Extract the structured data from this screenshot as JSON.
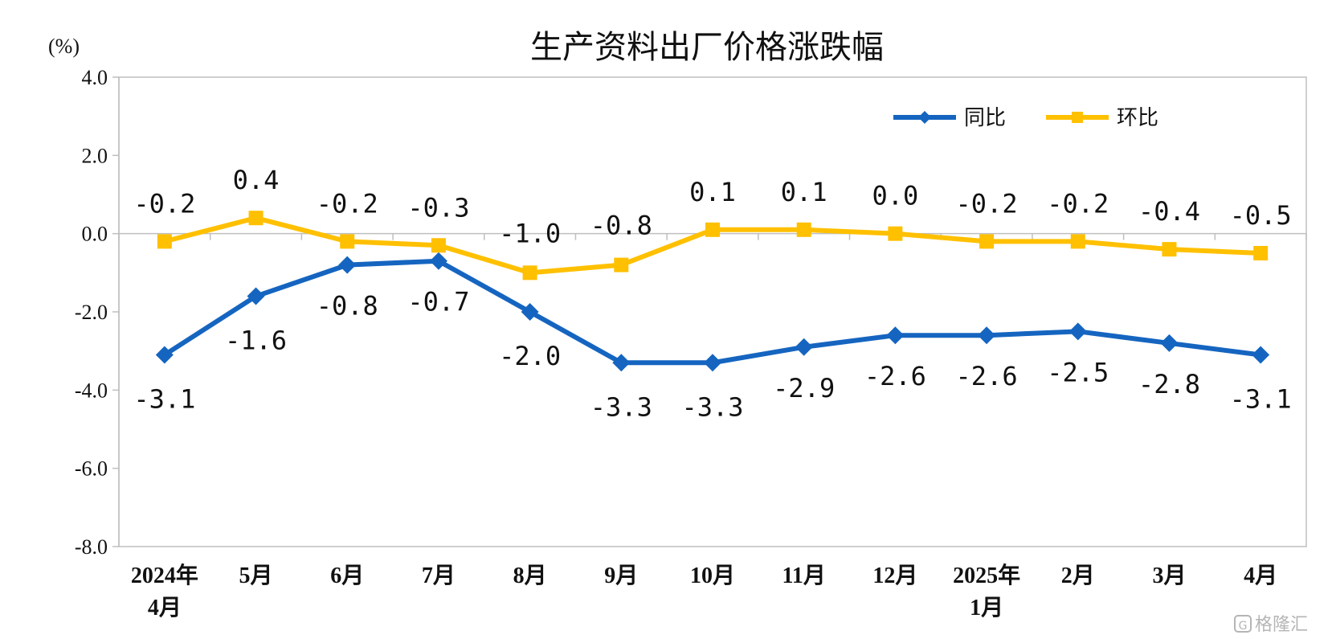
{
  "chart_data": {
    "type": "line",
    "title": "生产资料出厂价格涨跌幅",
    "ylabel": "(%)",
    "ylim": [
      -8.0,
      4.0
    ],
    "yticks": [
      4.0,
      2.0,
      0.0,
      -2.0,
      -4.0,
      -6.0,
      -8.0
    ],
    "ytick_labels": [
      "4.0",
      "2.0",
      "0.0",
      "-2.0",
      "-4.0",
      "-6.0",
      "-8.0"
    ],
    "categories": [
      [
        "2024年",
        "4月"
      ],
      [
        "5月"
      ],
      [
        "6月"
      ],
      [
        "7月"
      ],
      [
        "8月"
      ],
      [
        "9月"
      ],
      [
        "10月"
      ],
      [
        "11月"
      ],
      [
        "12月"
      ],
      [
        "2025年",
        "1月"
      ],
      [
        "2月"
      ],
      [
        "3月"
      ],
      [
        "4月"
      ]
    ],
    "legend_position": "top-right",
    "grid": false,
    "series": [
      {
        "name": "同比",
        "color": "#1565C0",
        "marker": "diamond",
        "values": [
          -3.1,
          -1.6,
          -0.8,
          -0.7,
          -2.0,
          -3.3,
          -3.3,
          -2.9,
          -2.6,
          -2.6,
          -2.5,
          -2.8,
          -3.1
        ],
        "labels": [
          "-3.1",
          "-1.6",
          "-0.8",
          "-0.7",
          "-2.0",
          "-3.3",
          "-3.3",
          "-2.9",
          "-2.6",
          "-2.6",
          "-2.5",
          "-2.8",
          "-3.1"
        ]
      },
      {
        "name": "环比",
        "color": "#FFC000",
        "marker": "square",
        "values": [
          -0.2,
          0.4,
          -0.2,
          -0.3,
          -1.0,
          -0.8,
          0.1,
          0.1,
          0.0,
          -0.2,
          -0.2,
          -0.4,
          -0.5
        ],
        "labels": [
          "-0.2",
          "0.4",
          "-0.2",
          "-0.3",
          "-1.0",
          "-0.8",
          "0.1",
          "0.1",
          "0.0",
          "-0.2",
          "-0.2",
          "-0.4",
          "-0.5"
        ]
      }
    ]
  },
  "watermark": {
    "icon": "brand-logo-icon",
    "text": "格隆汇"
  }
}
